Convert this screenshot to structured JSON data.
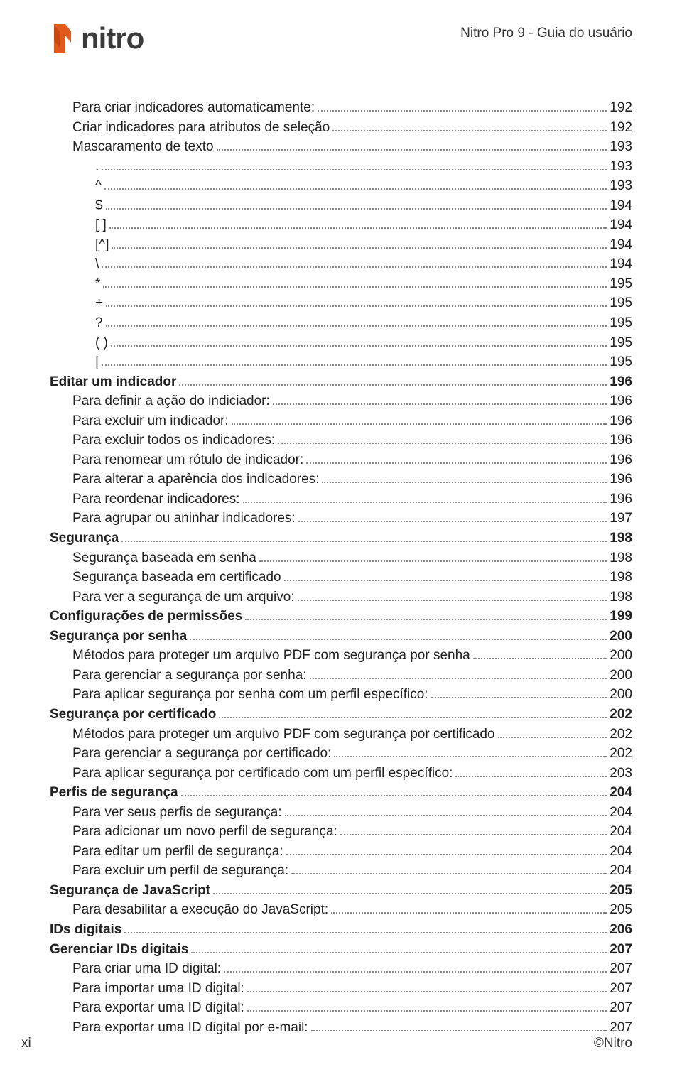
{
  "header": {
    "product_title": "Nitro Pro 9 - Guia do usuário",
    "logo_text": "nitro",
    "logo_icon_color": "#e15a1d",
    "logo_text_color": "#3a3a3a"
  },
  "footer": {
    "page_num": "xi",
    "copyright": "©Nitro"
  },
  "toc": [
    {
      "label": "Para criar indicadores automaticamente:",
      "page": "192",
      "indent": 1,
      "bold": false
    },
    {
      "label": "Criar indicadores para atributos de seleção",
      "page": "192",
      "indent": 1,
      "bold": false
    },
    {
      "label": "Mascaramento de texto",
      "page": "193",
      "indent": 1,
      "bold": false
    },
    {
      "label": ".",
      "page": "193",
      "indent": 2,
      "bold": false
    },
    {
      "label": "^",
      "page": "193",
      "indent": 2,
      "bold": false
    },
    {
      "label": "$",
      "page": "194",
      "indent": 2,
      "bold": false
    },
    {
      "label": "[ ]",
      "page": "194",
      "indent": 2,
      "bold": false
    },
    {
      "label": "[^]",
      "page": "194",
      "indent": 2,
      "bold": false
    },
    {
      "label": "\\",
      "page": "194",
      "indent": 2,
      "bold": false
    },
    {
      "label": "*",
      "page": "195",
      "indent": 2,
      "bold": false
    },
    {
      "label": "+",
      "page": "195",
      "indent": 2,
      "bold": false
    },
    {
      "label": "?",
      "page": "195",
      "indent": 2,
      "bold": false
    },
    {
      "label": "( )",
      "page": "195",
      "indent": 2,
      "bold": false
    },
    {
      "label": "|",
      "page": "195",
      "indent": 2,
      "bold": false
    },
    {
      "label": "Editar um indicador",
      "page": "196",
      "indent": 0,
      "bold": true
    },
    {
      "label": "Para definir a ação do indiciador:",
      "page": "196",
      "indent": 1,
      "bold": false
    },
    {
      "label": "Para excluir um indicador:",
      "page": "196",
      "indent": 1,
      "bold": false
    },
    {
      "label": "Para excluir todos os indicadores:",
      "page": "196",
      "indent": 1,
      "bold": false
    },
    {
      "label": "Para renomear um rótulo de indicador:",
      "page": "196",
      "indent": 1,
      "bold": false
    },
    {
      "label": "Para alterar a aparência dos indicadores:",
      "page": "196",
      "indent": 1,
      "bold": false
    },
    {
      "label": "Para reordenar indicadores:",
      "page": "196",
      "indent": 1,
      "bold": false
    },
    {
      "label": "Para agrupar ou aninhar indicadores:",
      "page": "197",
      "indent": 1,
      "bold": false
    },
    {
      "label": "Segurança",
      "page": "198",
      "indent": 0,
      "bold": true
    },
    {
      "label": "Segurança baseada em senha",
      "page": "198",
      "indent": 1,
      "bold": false
    },
    {
      "label": "Segurança baseada em certificado",
      "page": "198",
      "indent": 1,
      "bold": false
    },
    {
      "label": "Para ver a segurança de um arquivo:",
      "page": "198",
      "indent": 1,
      "bold": false
    },
    {
      "label": "Configurações de permissões",
      "page": "199",
      "indent": 0,
      "bold": true
    },
    {
      "label": "Segurança por senha",
      "page": "200",
      "indent": 0,
      "bold": true
    },
    {
      "label": "Métodos para proteger um arquivo PDF com segurança por senha",
      "page": "200",
      "indent": 1,
      "bold": false
    },
    {
      "label": "Para gerenciar a segurança por senha:",
      "page": "200",
      "indent": 1,
      "bold": false
    },
    {
      "label": "Para aplicar segurança por senha com um perfil específico:",
      "page": "200",
      "indent": 1,
      "bold": false
    },
    {
      "label": "Segurança por certificado",
      "page": "202",
      "indent": 0,
      "bold": true
    },
    {
      "label": "Métodos para proteger um arquivo PDF com segurança por certificado",
      "page": "202",
      "indent": 1,
      "bold": false
    },
    {
      "label": "Para gerenciar a segurança por certificado:",
      "page": "202",
      "indent": 1,
      "bold": false
    },
    {
      "label": "Para aplicar segurança por certificado com um perfil específico:",
      "page": "203",
      "indent": 1,
      "bold": false
    },
    {
      "label": "Perfis de segurança",
      "page": "204",
      "indent": 0,
      "bold": true
    },
    {
      "label": "Para ver seus perfis de segurança:",
      "page": "204",
      "indent": 1,
      "bold": false
    },
    {
      "label": "Para adicionar um novo perfil de segurança:",
      "page": "204",
      "indent": 1,
      "bold": false
    },
    {
      "label": "Para editar um perfil de segurança:",
      "page": "204",
      "indent": 1,
      "bold": false
    },
    {
      "label": "Para excluir um perfil de segurança:",
      "page": "204",
      "indent": 1,
      "bold": false
    },
    {
      "label": "Segurança de JavaScript",
      "page": "205",
      "indent": 0,
      "bold": true
    },
    {
      "label": "Para desabilitar a execução do JavaScript:",
      "page": "205",
      "indent": 1,
      "bold": false
    },
    {
      "label": "IDs digitais",
      "page": "206",
      "indent": 0,
      "bold": true
    },
    {
      "label": "Gerenciar IDs digitais",
      "page": "207",
      "indent": 0,
      "bold": true
    },
    {
      "label": "Para criar uma ID digital:",
      "page": "207",
      "indent": 1,
      "bold": false
    },
    {
      "label": "Para importar uma ID digital:",
      "page": "207",
      "indent": 1,
      "bold": false
    },
    {
      "label": "Para exportar uma ID digital:",
      "page": "207",
      "indent": 1,
      "bold": false
    },
    {
      "label": "Para exportar uma ID digital por e-mail:",
      "page": "207",
      "indent": 1,
      "bold": false
    }
  ]
}
